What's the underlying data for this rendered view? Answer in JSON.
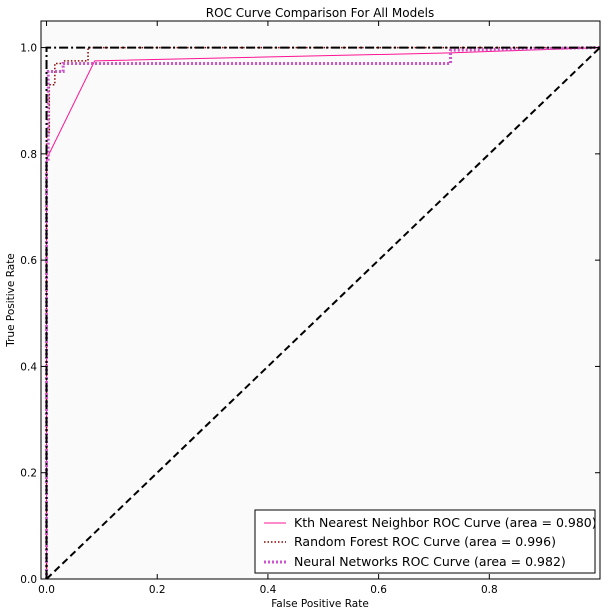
{
  "chart_data": {
    "type": "line",
    "title": "ROC Curve Comparison For All Models",
    "xlabel": "False Positive Rate",
    "ylabel": "True Positive Rate",
    "xlim": [
      -0.01,
      1.0
    ],
    "ylim": [
      0.0,
      1.05
    ],
    "xticks": [
      "0.0",
      "0.2",
      "0.4",
      "0.6",
      "0.8"
    ],
    "yticks": [
      "0.0",
      "0.2",
      "0.4",
      "0.6",
      "0.8",
      "1.0"
    ],
    "grid": false,
    "legend_position": "lower-right",
    "series": [
      {
        "name": "Kth Nearest Neighbor ROC Curve (area =  0.980)",
        "color": "#ff1493",
        "style": "solid",
        "x": [
          0.0,
          0.0,
          0.087,
          0.73,
          1.0
        ],
        "y": [
          0.0,
          0.79,
          0.975,
          0.99,
          1.0
        ]
      },
      {
        "name": "Random Forest ROC Curve (area =  0.996)",
        "color": "#8b0000",
        "style": "dotted",
        "x": [
          0.0,
          0.0,
          0.005,
          0.005,
          0.015,
          0.015,
          0.03,
          0.03,
          0.075,
          0.075,
          1.0
        ],
        "y": [
          0.0,
          0.84,
          0.84,
          0.93,
          0.93,
          0.97,
          0.97,
          0.975,
          0.975,
          1.0,
          1.0
        ]
      },
      {
        "name": "Neural Networks ROC Curve (area =  0.982)",
        "color": "#cc55cc",
        "style": "thick-dotted",
        "x": [
          0.0,
          0.0,
          0.003,
          0.003,
          0.03,
          0.03,
          0.73,
          0.73,
          1.0
        ],
        "y": [
          0.0,
          0.79,
          0.79,
          0.955,
          0.955,
          0.97,
          0.97,
          0.995,
          1.0
        ]
      },
      {
        "name": "",
        "color": "#000000",
        "style": "dashed",
        "x": [
          0.0,
          1.0
        ],
        "y": [
          0.0,
          1.0
        ]
      },
      {
        "name": "",
        "color": "#000000",
        "style": "dash-dot",
        "x": [
          0.0,
          0.0,
          1.0
        ],
        "y": [
          0.0,
          1.0,
          1.0
        ]
      }
    ]
  }
}
